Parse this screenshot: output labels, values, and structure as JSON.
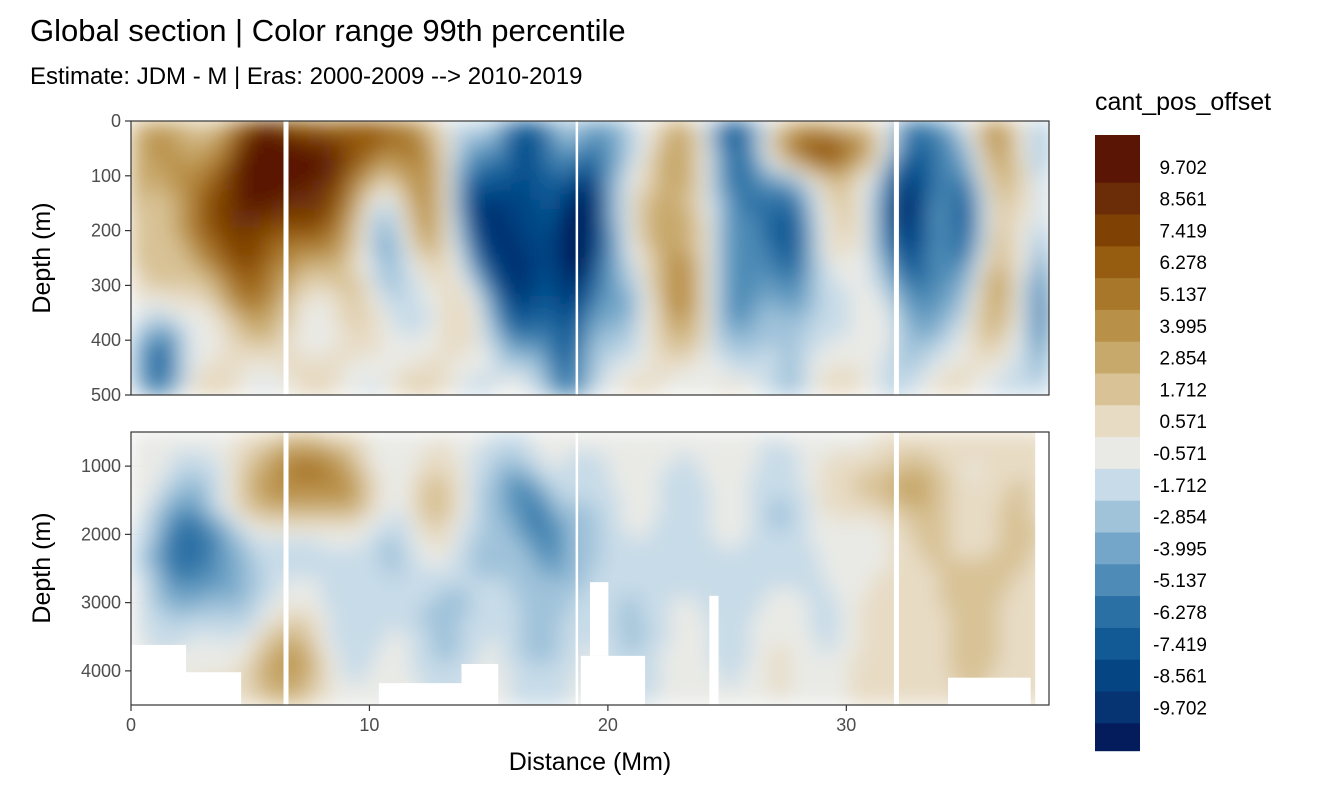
{
  "chart_data": {
    "type": "heatmap",
    "title": "Global section | Color range 99th percentile",
    "subtitle": "Estimate: JDM - M | Eras: 2000-2009 --> 2010-2019",
    "xlabel": "Distance (Mm)",
    "ylabel": "Depth (m)",
    "xlim": [
      0,
      38.5
    ],
    "x_ticks": [
      0,
      10,
      20,
      30
    ],
    "x_tick_labels": [
      "0",
      "10",
      "20",
      "30"
    ],
    "panels": [
      {
        "name": "upper",
        "ylim": [
          0,
          500
        ],
        "y_reversed": true,
        "y_ticks": [
          0,
          100,
          200,
          300,
          400,
          500
        ],
        "y_tick_labels": [
          "0",
          "100",
          "200",
          "300",
          "400",
          "500"
        ]
      },
      {
        "name": "lower",
        "ylim": [
          500,
          4500
        ],
        "y_reversed": true,
        "y_ticks": [
          1000,
          2000,
          3000,
          4000
        ],
        "y_tick_labels": [
          "1000",
          "2000",
          "3000",
          "4000"
        ]
      }
    ],
    "legend": {
      "title": "cant_pos_offset",
      "position": "right",
      "levels": [
        {
          "label": "9.702",
          "color": "#5a1505"
        },
        {
          "label": "8.561",
          "color": "#6b2d07"
        },
        {
          "label": "7.419",
          "color": "#7f4204"
        },
        {
          "label": "6.278",
          "color": "#965c10"
        },
        {
          "label": "5.137",
          "color": "#a8772a"
        },
        {
          "label": "3.995",
          "color": "#b99048"
        },
        {
          "label": "2.854",
          "color": "#c8a96c"
        },
        {
          "label": "1.712",
          "color": "#d8c296"
        },
        {
          "label": "0.571",
          "color": "#e7dbc4"
        },
        {
          "label": "-0.571",
          "color": "#e9eae6"
        },
        {
          "label": "-1.712",
          "color": "#c7dbe8"
        },
        {
          "label": "-2.854",
          "color": "#a0c3da"
        },
        {
          "label": "-3.995",
          "color": "#73a6c8"
        },
        {
          "label": "-5.137",
          "color": "#4e8bb6"
        },
        {
          "label": "-6.278",
          "color": "#2a70a4"
        },
        {
          "label": "-7.419",
          "color": "#115a95"
        },
        {
          "label": "-8.561",
          "color": "#054584"
        },
        {
          "label": "-9.702",
          "color": "#063372"
        }
      ],
      "extreme_colors": {
        "top": "#5a1505",
        "bottom": "#041c5c"
      }
    },
    "grid": true,
    "white_gap_x": [
      6.5,
      18.7,
      32.1
    ]
  }
}
